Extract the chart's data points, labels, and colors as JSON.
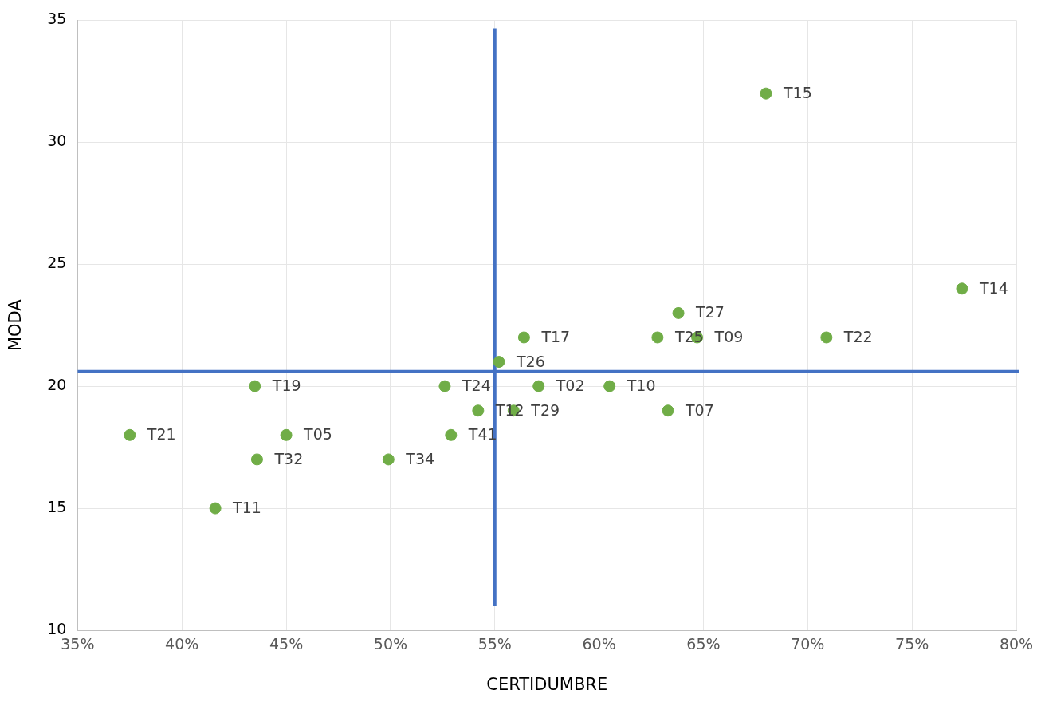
{
  "chart_data": {
    "type": "scatter",
    "xlabel": "CERTIDUMBRE",
    "ylabel": "MODA",
    "x": [
      68.0,
      77.4,
      63.8,
      62.8,
      64.7,
      70.9,
      56.4,
      55.2,
      43.5,
      52.6,
      57.1,
      60.5,
      54.2,
      55.9,
      63.3,
      37.5,
      45.0,
      52.9,
      43.6,
      49.9,
      41.6
    ],
    "series": [
      {
        "color": "#70ad47",
        "values": [
          32,
          24,
          23,
          22,
          22,
          22,
          22,
          21,
          20,
          20,
          20,
          20,
          19,
          19,
          19,
          18,
          18,
          18,
          17,
          17,
          15
        ]
      }
    ],
    "annotations": [
      {
        "text": "T15",
        "x": 68.0,
        "y": 32
      },
      {
        "text": "T14",
        "x": 77.4,
        "y": 24
      },
      {
        "text": "T27",
        "x": 63.8,
        "y": 23
      },
      {
        "text": "T25",
        "x": 62.8,
        "y": 22
      },
      {
        "text": "T09",
        "x": 64.7,
        "y": 22
      },
      {
        "text": "T22",
        "x": 70.9,
        "y": 22
      },
      {
        "text": "T17",
        "x": 56.4,
        "y": 22
      },
      {
        "text": "T26",
        "x": 55.2,
        "y": 21
      },
      {
        "text": "T19",
        "x": 43.5,
        "y": 20
      },
      {
        "text": "T24",
        "x": 52.6,
        "y": 20
      },
      {
        "text": "T02",
        "x": 57.1,
        "y": 20
      },
      {
        "text": "T10",
        "x": 60.5,
        "y": 20
      },
      {
        "text": "T12",
        "x": 54.2,
        "y": 19
      },
      {
        "text": "T29",
        "x": 55.9,
        "y": 19
      },
      {
        "text": "T07",
        "x": 63.3,
        "y": 19
      },
      {
        "text": "T21",
        "x": 37.5,
        "y": 18
      },
      {
        "text": "T05",
        "x": 45.0,
        "y": 18
      },
      {
        "text": "T41",
        "x": 52.9,
        "y": 18
      },
      {
        "text": "T32",
        "x": 43.6,
        "y": 17
      },
      {
        "text": "T34",
        "x": 49.9,
        "y": 17
      },
      {
        "text": "T11",
        "x": 41.6,
        "y": 15
      }
    ],
    "ref_lines": [
      {
        "axis": "x",
        "value": 55,
        "color": "#4472c4"
      },
      {
        "axis": "y",
        "value": 20.6,
        "color": "#4472c4"
      }
    ],
    "xlim": [
      35,
      80
    ],
    "xticks": [
      {
        "value": 35,
        "label": "35%"
      },
      {
        "value": 40,
        "label": "40%"
      },
      {
        "value": 45,
        "label": "45%"
      },
      {
        "value": 50,
        "label": "50%"
      },
      {
        "value": 55,
        "label": "55%"
      },
      {
        "value": 60,
        "label": "60%"
      },
      {
        "value": 65,
        "label": "65%"
      },
      {
        "value": 70,
        "label": "70%"
      },
      {
        "value": 75,
        "label": "75%"
      },
      {
        "value": 80,
        "label": "80%"
      }
    ],
    "ylim": [
      10,
      35
    ],
    "yticks": [
      10,
      15,
      20,
      25,
      30,
      35
    ],
    "grid": true,
    "marker": "circle"
  }
}
